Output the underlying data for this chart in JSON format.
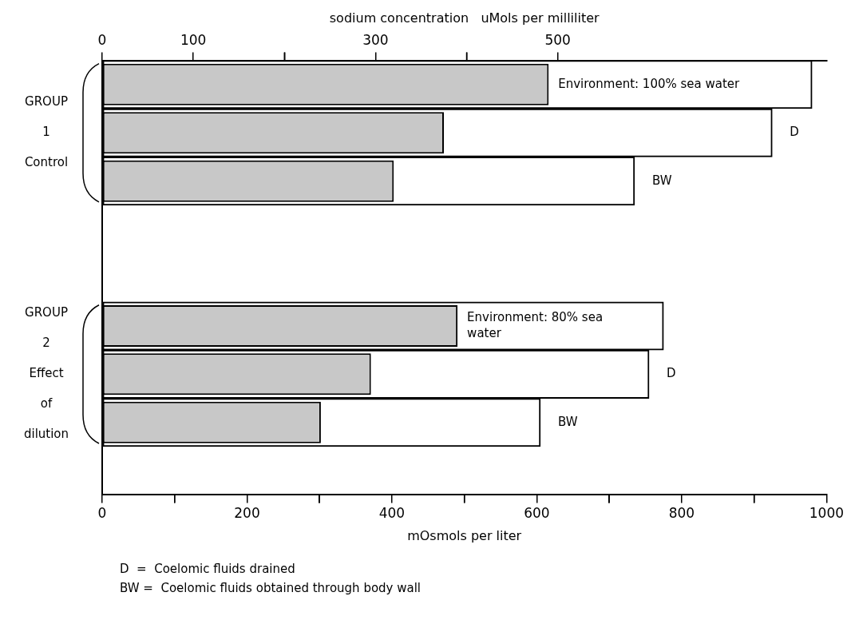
{
  "chart_data": {
    "type": "bar",
    "orientation": "horizontal",
    "categories": [
      null,
      null,
      null,
      null,
      null,
      null,
      null,
      null,
      null
    ],
    "series": [
      {
        "color": "#ffffff",
        "values": [
          980,
          925,
          735,
          null,
          null,
          775,
          755,
          605,
          null
        ],
        "value_labels": [
          null,
          "D",
          "BW",
          null,
          null,
          null,
          "D",
          "BW",
          null
        ]
      },
      {
        "color": "#c8c8c8",
        "axis": "x2",
        "values": [
          490,
          375,
          320,
          null,
          null,
          390,
          295,
          240,
          null
        ]
      }
    ],
    "xlabel": "mOsmols per liter",
    "x2label": "sodium concentration   uMols per milliliter",
    "xlim": [
      0,
      1000
    ],
    "xticks": [
      0,
      {
        "value": 100,
        "label": null
      },
      200,
      {
        "value": 300,
        "label": null
      },
      400,
      {
        "value": 500,
        "label": null
      },
      600,
      {
        "value": 700,
        "label": null
      },
      800,
      {
        "value": 900,
        "label": null
      },
      1000
    ],
    "x2lim": [
      0,
      795
    ],
    "x2ticks": [
      0,
      100,
      {
        "value": 200,
        "label": null
      },
      300,
      {
        "value": 400,
        "label": null
      },
      500
    ],
    "grid": false,
    "annotations": [
      "GROUP 1 Control",
      "Environment: 100% sea water",
      "GROUP 2 Effect of dilution",
      "Environment: 80% sea water",
      "D  =  Coelomic fluids drained",
      "BW =  Coelomic fluids obtained through body wall"
    ]
  }
}
